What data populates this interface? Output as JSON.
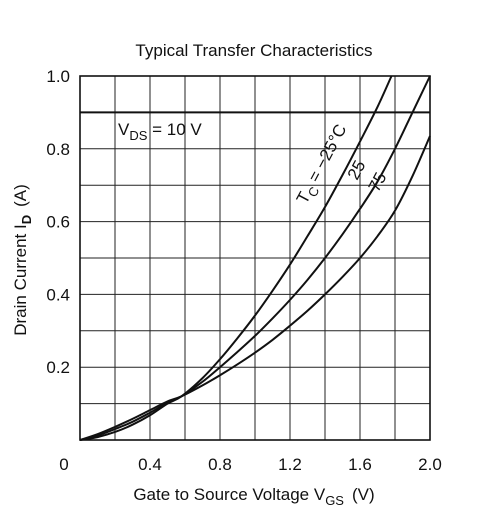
{
  "chart_data": {
    "type": "line",
    "title": "Typical Transfer Characteristics",
    "xlabel": {
      "main": "Gate to Source Voltage  V",
      "sub": "GS",
      "unit": "(V)"
    },
    "ylabel": {
      "main": "Drain Current  I",
      "sub": "D",
      "unit": "(A)"
    },
    "xlim": [
      0,
      2.0
    ],
    "ylim": [
      0,
      1.0
    ],
    "xticks": [
      0,
      0.4,
      0.8,
      1.2,
      1.6,
      2.0
    ],
    "xtick_labels": [
      "0",
      "0.4",
      "0.8",
      "1.2",
      "1.6",
      "2.0"
    ],
    "yticks": [
      0.2,
      0.4,
      0.6,
      0.8,
      1.0
    ],
    "ytick_labels": [
      "0.2",
      "0.4",
      "0.6",
      "0.8",
      "1.0"
    ],
    "grid": true,
    "annotation": {
      "main": "V",
      "sub": "DS",
      "rest": " = 10 V"
    },
    "annotation_line_y": 0.9,
    "series": [
      {
        "name": "T_C = -25°C",
        "label": {
          "t": "T",
          "sub": "C",
          "rest": " = −25°C"
        },
        "x": [
          0.0,
          0.1,
          0.2,
          0.3,
          0.4,
          0.5,
          0.58,
          0.7,
          0.8,
          0.9,
          1.0,
          1.1,
          1.2,
          1.3,
          1.4,
          1.5,
          1.6,
          1.7,
          1.78
        ],
        "y": [
          0.0,
          0.008,
          0.022,
          0.042,
          0.068,
          0.1,
          0.12,
          0.17,
          0.222,
          0.28,
          0.342,
          0.41,
          0.482,
          0.56,
          0.64,
          0.728,
          0.82,
          0.915,
          1.0
        ]
      },
      {
        "name": "25",
        "label": {
          "t": "25",
          "sub": "",
          "rest": ""
        },
        "x": [
          0.0,
          0.1,
          0.2,
          0.3,
          0.4,
          0.5,
          0.58,
          0.7,
          0.8,
          0.9,
          1.0,
          1.1,
          1.2,
          1.3,
          1.4,
          1.5,
          1.6,
          1.7,
          1.8,
          1.9,
          2.0
        ],
        "y": [
          0.0,
          0.012,
          0.03,
          0.05,
          0.075,
          0.102,
          0.12,
          0.16,
          0.2,
          0.242,
          0.286,
          0.334,
          0.385,
          0.44,
          0.5,
          0.565,
          0.635,
          0.71,
          0.8,
          0.9,
          1.0
        ]
      },
      {
        "name": "75",
        "label": {
          "t": "75",
          "sub": "",
          "rest": ""
        },
        "x": [
          0.0,
          0.1,
          0.2,
          0.3,
          0.4,
          0.5,
          0.58,
          0.7,
          0.8,
          0.9,
          1.0,
          1.1,
          1.2,
          1.3,
          1.4,
          1.5,
          1.6,
          1.7,
          1.8,
          1.9,
          2.0
        ],
        "y": [
          0.0,
          0.016,
          0.036,
          0.058,
          0.082,
          0.106,
          0.12,
          0.15,
          0.178,
          0.208,
          0.24,
          0.275,
          0.314,
          0.355,
          0.4,
          0.448,
          0.5,
          0.56,
          0.63,
          0.725,
          0.835
        ]
      }
    ]
  }
}
